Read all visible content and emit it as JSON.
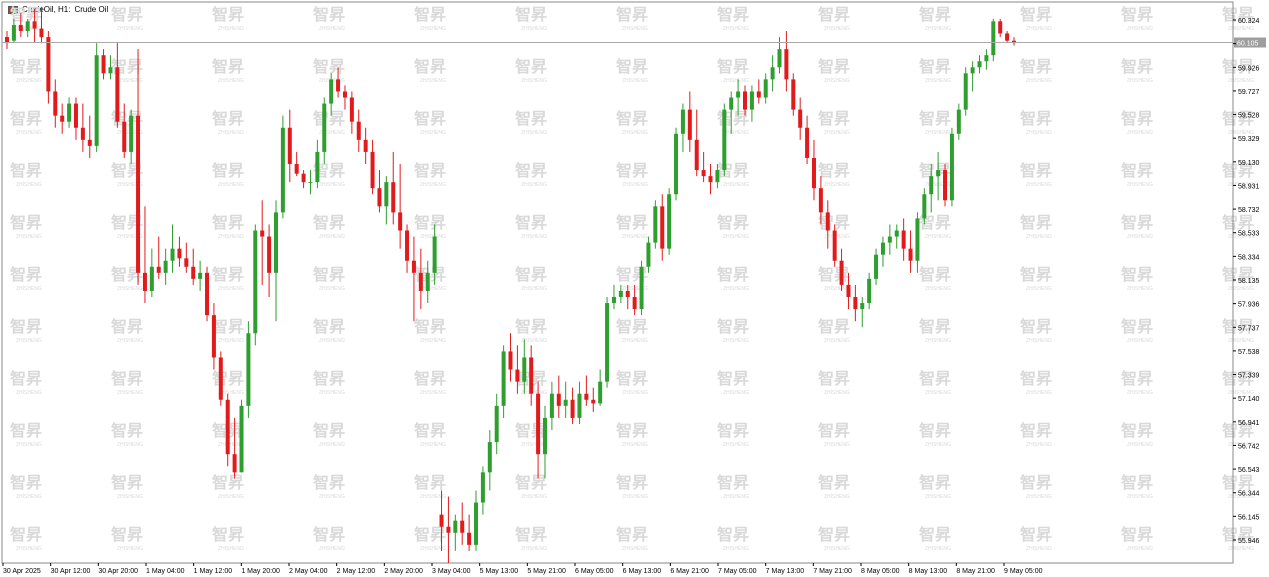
{
  "window": {
    "symbol_label": "CrudeOil, H1:",
    "description": "Crude Oil",
    "icon": "chart-bars-icon"
  },
  "colors": {
    "bull": "#2e9e2e",
    "bear": "#e31a1c",
    "axis": "#000000",
    "current_line": "#a9a9a9",
    "watermark": "#d9d9d9"
  },
  "watermark": {
    "text": "智昇",
    "sub": "ZHISHENG"
  },
  "chart_data": {
    "type": "candlestick",
    "title": "CrudeOil, H1: Crude Oil",
    "xlabel": "",
    "ylabel": "",
    "ylim": [
      55.8,
      60.44
    ],
    "y_ticks": [
      "60.324",
      "60.125",
      "59.926",
      "59.727",
      "59.528",
      "59.329",
      "59.130",
      "58.931",
      "58.732",
      "58.533",
      "58.334",
      "58.135",
      "57.936",
      "57.737",
      "57.538",
      "57.339",
      "57.140",
      "56.941",
      "56.742",
      "56.543",
      "56.344",
      "56.145",
      "55.946"
    ],
    "x_ticks": [
      "30 Apr 2025",
      "30 Apr 12:00",
      "30 Apr 20:00",
      "1 May 04:00",
      "1 May 12:00",
      "1 May 20:00",
      "2 May 04:00",
      "2 May 12:00",
      "2 May 20:00",
      "3 May 04:00",
      "5 May 13:00",
      "5 May 21:00",
      "6 May 05:00",
      "6 May 13:00",
      "6 May 21:00",
      "7 May 05:00",
      "7 May 13:00",
      "7 May 21:00",
      "8 May 05:00",
      "8 May 13:00",
      "8 May 21:00",
      "9 May 05:00"
    ],
    "current_price": 60.105,
    "current_price_label": "60.105",
    "grid": false,
    "candles": [
      [
        60.15,
        60.2,
        60.05,
        60.1
      ],
      [
        60.12,
        60.3,
        60.1,
        60.25
      ],
      [
        60.25,
        60.35,
        60.15,
        60.2
      ],
      [
        60.2,
        60.3,
        60.15,
        60.28
      ],
      [
        60.28,
        60.38,
        60.1,
        60.22
      ],
      [
        60.22,
        60.4,
        60.1,
        60.15
      ],
      [
        60.15,
        60.2,
        59.6,
        59.7
      ],
      [
        59.7,
        59.8,
        59.4,
        59.5
      ],
      [
        59.5,
        59.6,
        59.35,
        59.45
      ],
      [
        59.45,
        59.65,
        59.4,
        59.6
      ],
      [
        59.6,
        59.65,
        59.3,
        59.4
      ],
      [
        59.4,
        59.6,
        59.2,
        59.3
      ],
      [
        59.3,
        59.5,
        59.15,
        59.25
      ],
      [
        59.25,
        60.1,
        59.2,
        60.0
      ],
      [
        60.0,
        60.05,
        59.8,
        59.85
      ],
      [
        59.85,
        60.0,
        59.8,
        59.9
      ],
      [
        59.9,
        60.1,
        59.4,
        59.45
      ],
      [
        59.45,
        59.6,
        59.15,
        59.2
      ],
      [
        59.2,
        59.55,
        59.1,
        59.5
      ],
      [
        59.5,
        60.05,
        58.1,
        58.2
      ],
      [
        58.2,
        58.75,
        57.95,
        58.05
      ],
      [
        58.05,
        58.4,
        58.0,
        58.25
      ],
      [
        58.25,
        58.5,
        58.15,
        58.2
      ],
      [
        58.2,
        58.4,
        58.1,
        58.3
      ],
      [
        58.3,
        58.6,
        58.2,
        58.4
      ],
      [
        58.4,
        58.5,
        58.25,
        58.32
      ],
      [
        58.32,
        58.45,
        58.2,
        58.25
      ],
      [
        58.25,
        58.4,
        58.1,
        58.15
      ],
      [
        58.15,
        58.3,
        58.05,
        58.2
      ],
      [
        58.2,
        58.25,
        57.8,
        57.85
      ],
      [
        57.85,
        57.95,
        57.4,
        57.5
      ],
      [
        57.5,
        57.55,
        57.1,
        57.15
      ],
      [
        57.15,
        57.2,
        56.6,
        56.7
      ],
      [
        56.7,
        57.0,
        56.5,
        56.55
      ],
      [
        56.55,
        57.15,
        56.55,
        57.1
      ],
      [
        57.1,
        57.8,
        57.0,
        57.7
      ],
      [
        57.7,
        58.6,
        57.6,
        58.55
      ],
      [
        58.55,
        58.8,
        58.1,
        58.5
      ],
      [
        58.5,
        58.6,
        58.0,
        58.2
      ],
      [
        58.2,
        58.8,
        57.8,
        58.7
      ],
      [
        58.7,
        59.5,
        58.65,
        59.4
      ],
      [
        59.4,
        59.55,
        58.95,
        59.1
      ],
      [
        59.1,
        59.2,
        59.0,
        59.02
      ],
      [
        59.02,
        59.05,
        58.9,
        58.95
      ],
      [
        58.95,
        59.05,
        58.85,
        58.95
      ],
      [
        58.95,
        59.3,
        58.9,
        59.2
      ],
      [
        59.2,
        59.65,
        59.1,
        59.6
      ],
      [
        59.6,
        59.85,
        59.5,
        59.8
      ],
      [
        59.8,
        59.9,
        59.65,
        59.7
      ],
      [
        59.7,
        59.75,
        59.55,
        59.65
      ],
      [
        59.65,
        59.7,
        59.35,
        59.45
      ],
      [
        59.45,
        59.55,
        59.2,
        59.3
      ],
      [
        59.3,
        59.4,
        59.1,
        59.2
      ],
      [
        59.2,
        59.3,
        58.85,
        58.9
      ],
      [
        58.9,
        59.05,
        58.7,
        58.75
      ],
      [
        58.75,
        59.0,
        58.6,
        58.95
      ],
      [
        58.95,
        59.2,
        58.6,
        58.7
      ],
      [
        58.7,
        59.1,
        58.4,
        58.55
      ],
      [
        58.55,
        58.6,
        58.2,
        58.3
      ],
      [
        58.3,
        58.5,
        57.8,
        58.2
      ],
      [
        58.2,
        58.4,
        57.9,
        58.05
      ],
      [
        58.05,
        58.3,
        57.95,
        58.2
      ],
      [
        58.2,
        58.6,
        58.1,
        58.5
      ],
      [
        56.2,
        56.4,
        55.9,
        56.1
      ],
      [
        56.1,
        56.35,
        55.8,
        56.05
      ],
      [
        56.05,
        56.2,
        55.9,
        56.15
      ],
      [
        56.15,
        56.3,
        55.95,
        56.05
      ],
      [
        56.05,
        56.2,
        55.9,
        55.95
      ],
      [
        55.95,
        56.4,
        55.9,
        56.3
      ],
      [
        56.3,
        56.6,
        56.2,
        56.55
      ],
      [
        56.55,
        56.9,
        56.4,
        56.8
      ],
      [
        56.8,
        57.2,
        56.7,
        57.1
      ],
      [
        57.1,
        57.6,
        57.0,
        57.55
      ],
      [
        57.55,
        57.7,
        57.3,
        57.4
      ],
      [
        57.4,
        57.6,
        57.2,
        57.3
      ],
      [
        57.3,
        57.65,
        57.2,
        57.5
      ],
      [
        57.5,
        57.6,
        57.1,
        57.2
      ],
      [
        57.2,
        57.3,
        56.5,
        56.7
      ],
      [
        56.7,
        57.1,
        56.5,
        57.0
      ],
      [
        57.0,
        57.3,
        56.9,
        57.2
      ],
      [
        57.2,
        57.35,
        57.0,
        57.1
      ],
      [
        57.1,
        57.3,
        57.0,
        57.15
      ],
      [
        57.15,
        57.25,
        56.95,
        57.0
      ],
      [
        57.0,
        57.3,
        56.95,
        57.2
      ],
      [
        57.2,
        57.35,
        57.1,
        57.15
      ],
      [
        57.15,
        57.25,
        57.05,
        57.12
      ],
      [
        57.12,
        57.4,
        57.1,
        57.3
      ],
      [
        57.3,
        58.0,
        57.25,
        57.95
      ],
      [
        57.95,
        58.1,
        57.9,
        58.0
      ],
      [
        58.0,
        58.1,
        57.95,
        58.05
      ],
      [
        58.05,
        58.1,
        57.9,
        58.0
      ],
      [
        58.0,
        58.1,
        57.85,
        57.9
      ],
      [
        57.9,
        58.3,
        57.85,
        58.25
      ],
      [
        58.25,
        58.5,
        58.2,
        58.45
      ],
      [
        58.45,
        58.8,
        58.4,
        58.75
      ],
      [
        58.75,
        58.85,
        58.3,
        58.4
      ],
      [
        58.4,
        58.9,
        58.35,
        58.85
      ],
      [
        58.85,
        59.4,
        58.8,
        59.35
      ],
      [
        59.35,
        59.6,
        59.2,
        59.55
      ],
      [
        59.55,
        59.7,
        59.2,
        59.3
      ],
      [
        59.3,
        59.55,
        59.0,
        59.05
      ],
      [
        59.05,
        59.2,
        58.95,
        59.0
      ],
      [
        59.0,
        59.1,
        58.85,
        58.95
      ],
      [
        58.95,
        59.1,
        58.9,
        59.05
      ],
      [
        59.05,
        59.6,
        59.0,
        59.55
      ],
      [
        59.55,
        59.7,
        59.35,
        59.65
      ],
      [
        59.65,
        59.8,
        59.5,
        59.7
      ],
      [
        59.7,
        59.75,
        59.5,
        59.55
      ],
      [
        59.55,
        59.75,
        59.45,
        59.7
      ],
      [
        59.7,
        59.8,
        59.6,
        59.65
      ],
      [
        59.65,
        59.85,
        59.6,
        59.8
      ],
      [
        59.8,
        60.0,
        59.7,
        59.9
      ],
      [
        59.9,
        60.15,
        59.85,
        60.05
      ],
      [
        60.05,
        60.2,
        59.7,
        59.8
      ],
      [
        59.8,
        59.85,
        59.5,
        59.55
      ],
      [
        59.55,
        59.65,
        59.3,
        59.4
      ],
      [
        59.4,
        59.5,
        59.1,
        59.15
      ],
      [
        59.15,
        59.3,
        58.8,
        58.9
      ],
      [
        58.9,
        59.0,
        58.6,
        58.7
      ],
      [
        58.7,
        58.8,
        58.4,
        58.55
      ],
      [
        58.55,
        58.6,
        58.25,
        58.3
      ],
      [
        58.3,
        58.4,
        58.05,
        58.1
      ],
      [
        58.1,
        58.2,
        57.9,
        58.0
      ],
      [
        58.0,
        58.1,
        57.8,
        57.9
      ],
      [
        57.9,
        58.0,
        57.75,
        57.95
      ],
      [
        57.95,
        58.2,
        57.9,
        58.15
      ],
      [
        58.15,
        58.4,
        58.1,
        58.35
      ],
      [
        58.35,
        58.5,
        58.25,
        58.45
      ],
      [
        58.45,
        58.6,
        58.35,
        58.5
      ],
      [
        58.5,
        58.6,
        58.4,
        58.55
      ],
      [
        58.55,
        58.65,
        58.3,
        58.4
      ],
      [
        58.4,
        58.55,
        58.2,
        58.3
      ],
      [
        58.3,
        58.7,
        58.2,
        58.65
      ],
      [
        58.65,
        58.9,
        58.6,
        58.85
      ],
      [
        58.85,
        59.1,
        58.7,
        59.0
      ],
      [
        59.0,
        59.2,
        58.8,
        59.05
      ],
      [
        59.05,
        59.1,
        58.75,
        58.8
      ],
      [
        58.8,
        59.4,
        58.75,
        59.35
      ],
      [
        59.35,
        59.6,
        59.3,
        59.55
      ],
      [
        59.55,
        59.9,
        59.5,
        59.85
      ],
      [
        59.85,
        59.95,
        59.7,
        59.9
      ],
      [
        59.9,
        60.0,
        59.85,
        59.95
      ],
      [
        59.95,
        60.05,
        59.88,
        60.0
      ],
      [
        60.0,
        60.3,
        59.95,
        60.28
      ],
      [
        60.28,
        60.3,
        60.15,
        60.18
      ],
      [
        60.18,
        60.2,
        60.1,
        60.12
      ],
      [
        60.12,
        60.15,
        60.08,
        60.1
      ]
    ]
  }
}
